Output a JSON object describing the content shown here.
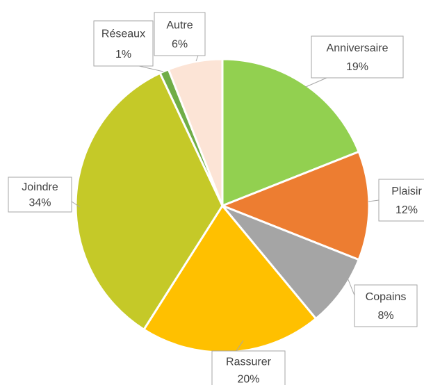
{
  "chart_data": {
    "type": "pie",
    "categories": [
      "Anniversaire",
      "Plaisir",
      "Copains",
      "Rassurer",
      "Joindre",
      "Réseaux",
      "Autre"
    ],
    "values": [
      19,
      12,
      8,
      20,
      34,
      1,
      6
    ],
    "value_labels": [
      "19%",
      "12%",
      "8%",
      "20%",
      "34%",
      "1%",
      "6%"
    ],
    "colors": [
      "#92d050",
      "#ed7d31",
      "#a5a5a5",
      "#ffc000",
      "#c5c928",
      "#70ad47",
      "#fce4d6"
    ]
  }
}
